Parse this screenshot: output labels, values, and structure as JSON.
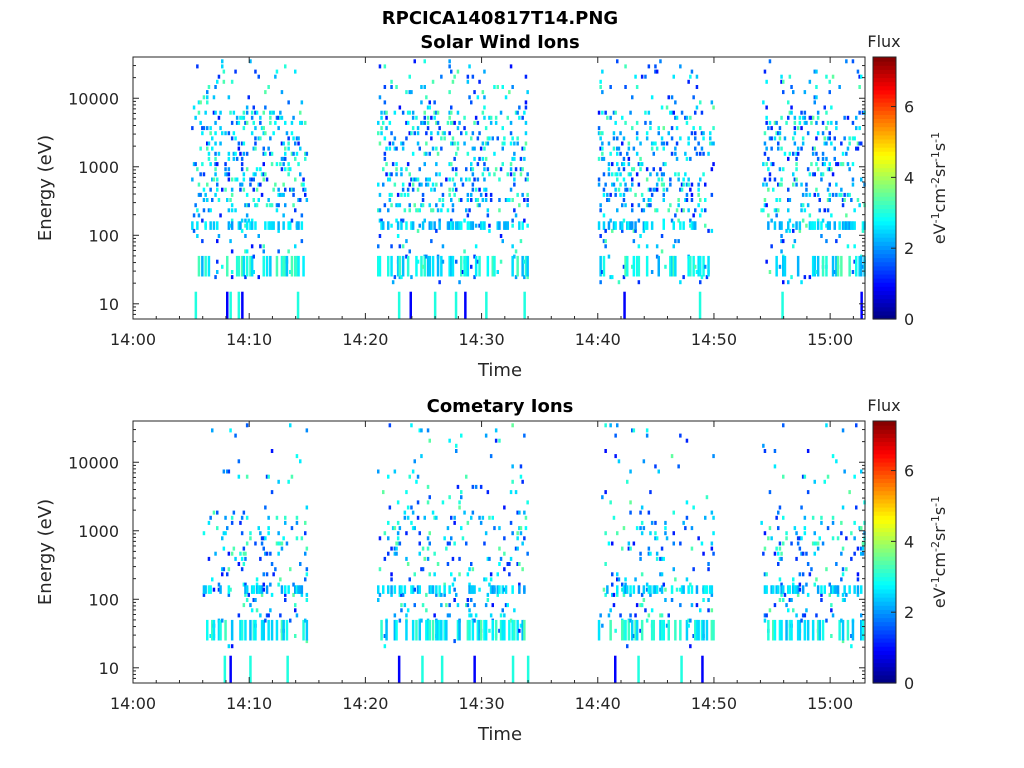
{
  "figure": {
    "title": "RPCICA140817T14.PNG"
  },
  "colorbar": {
    "title": "Flux",
    "label": "eV<sup>-1</sup>cm<sup>-2</sup>sr<sup>-1</sup>s<sup>-1</sup>",
    "label_text": "eV-1cm-2sr-1s-1",
    "ticks": [
      "0",
      "2",
      "4",
      "6"
    ],
    "range": [
      0,
      7.4
    ],
    "colormap": "jet"
  },
  "chart_data": [
    {
      "type": "heatmap",
      "title": "Solar Wind Ions",
      "xlabel": "Time",
      "ylabel": "Energy (eV)",
      "xticks": [
        "14:00",
        "14:10",
        "14:20",
        "14:30",
        "14:40",
        "14:50",
        "15:00"
      ],
      "xlim_minutes": [
        0,
        63
      ],
      "yscale": "log",
      "yticks": [
        "10",
        "100",
        "1000",
        "10000"
      ],
      "ylim": [
        6,
        40000
      ],
      "active_intervals": [
        [
          "14:05",
          "14:15"
        ],
        [
          "14:21",
          "14:34"
        ],
        [
          "14:40",
          "14:50"
        ],
        [
          "14:54",
          "15:03"
        ]
      ],
      "low_energy_columns_minutes": [
        5.3,
        8.0,
        8.3,
        9.0,
        9.3,
        14.1,
        22.8,
        23.8,
        25.9,
        27.7,
        28.5,
        30.3,
        33.6,
        42.2,
        48.7,
        55.8,
        62.6
      ],
      "typical_flux_range": [
        1,
        3.5
      ]
    },
    {
      "type": "heatmap",
      "title": "Cometary Ions",
      "xlabel": "Time",
      "ylabel": "Energy (eV)",
      "xticks": [
        "14:00",
        "14:10",
        "14:20",
        "14:30",
        "14:40",
        "14:50",
        "15:00"
      ],
      "xlim_minutes": [
        0,
        63
      ],
      "yscale": "log",
      "yticks": [
        "10",
        "100",
        "1000",
        "10000"
      ],
      "ylim": [
        6,
        40000
      ],
      "active_intervals": [
        [
          "14:06",
          "14:15"
        ],
        [
          "14:21",
          "14:34"
        ],
        [
          "14:40",
          "14:50"
        ],
        [
          "14:54",
          "15:03"
        ]
      ],
      "low_energy_columns_minutes": [
        7.8,
        8.3,
        10.0,
        13.2,
        22.8,
        24.8,
        26.5,
        29.3,
        32.6,
        33.9,
        41.4,
        43.4,
        47.1,
        48.9
      ],
      "typical_flux_range": [
        1,
        3.5
      ]
    }
  ]
}
